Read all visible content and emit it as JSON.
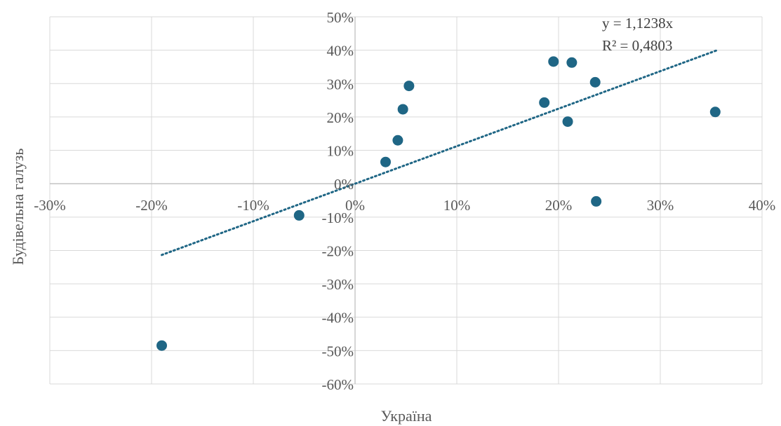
{
  "chart_data": {
    "type": "scatter",
    "title": "",
    "xlabel": "Україна",
    "ylabel": "Будівельна галузь",
    "xlim": [
      -30,
      40
    ],
    "ylim": [
      -60,
      50
    ],
    "x_ticks": [
      -30,
      -20,
      -10,
      0,
      10,
      20,
      30,
      40
    ],
    "y_ticks": [
      -60,
      -50,
      -40,
      -30,
      -20,
      -10,
      0,
      10,
      20,
      30,
      40,
      50
    ],
    "x_tick_labels": [
      "-30%",
      "-20%",
      "-10%",
      "0%",
      "10%",
      "20%",
      "30%",
      "40%"
    ],
    "y_tick_labels": [
      "-60%",
      "-50%",
      "-40%",
      "-30%",
      "-20%",
      "-10%",
      "0%",
      "10%",
      "20%",
      "30%",
      "40%",
      "50%"
    ],
    "grid": true,
    "marker_color": "#1f6685",
    "trendline": {
      "type": "linear-through-origin",
      "slope": 1.1238,
      "x_range": [
        -19,
        35.5
      ],
      "color": "#1f6685",
      "style": "dotted",
      "equation": "y = 1,1238x",
      "r_squared": "R² = 0,4803"
    },
    "points": [
      {
        "x": -19,
        "y": -48.5
      },
      {
        "x": -5.5,
        "y": -9.5
      },
      {
        "x": 3,
        "y": 6.5
      },
      {
        "x": 4.2,
        "y": 13
      },
      {
        "x": 4.7,
        "y": 22.3
      },
      {
        "x": 5.3,
        "y": 29.3
      },
      {
        "x": 18.6,
        "y": 24.3
      },
      {
        "x": 19.5,
        "y": 36.6
      },
      {
        "x": 20.9,
        "y": 18.6
      },
      {
        "x": 21.3,
        "y": 36.3
      },
      {
        "x": 23.6,
        "y": 30.4
      },
      {
        "x": 23.7,
        "y": -5.3
      },
      {
        "x": 35.4,
        "y": 21.5
      }
    ]
  }
}
